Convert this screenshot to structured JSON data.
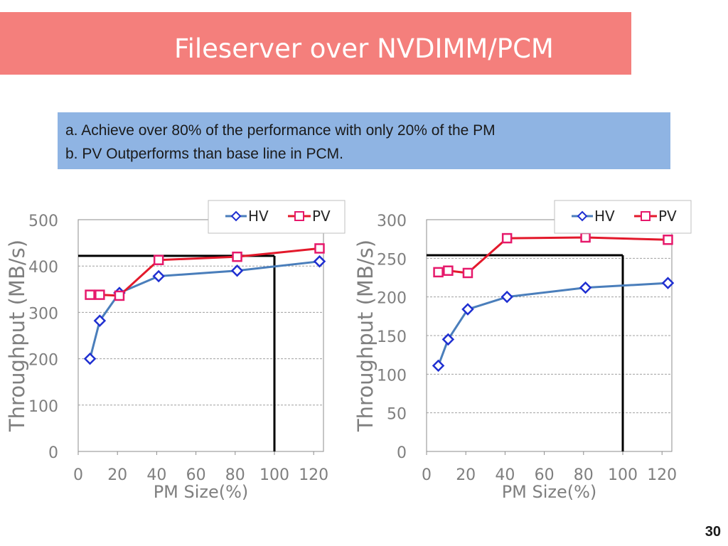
{
  "slide": {
    "title": "Fileserver over NVDIMM/PCM",
    "notes": [
      "a. Achieve over 80% of the performance with only 20% of the PM",
      "b. PV Outperforms than base line in PCM."
    ],
    "page_number": "30"
  },
  "colors": {
    "title_bg": "#f47f7c",
    "note_bg": "#8fb4e3",
    "hv": "#4a7ebb",
    "hv_marker": "#1f2fd1",
    "pv": "#e3192b",
    "pv_marker": "#e6196b",
    "baseline": "#000000"
  },
  "chart_data": [
    {
      "type": "line",
      "xlabel": "PM Size(%)",
      "ylabel": "Throughput (MB/s)",
      "xlim": [
        0,
        125
      ],
      "ylim": [
        0,
        500
      ],
      "xticks": [
        0,
        20,
        40,
        60,
        80,
        100,
        120
      ],
      "yticks": [
        0,
        100,
        200,
        300,
        400,
        500
      ],
      "grid": true,
      "legend": "top-right",
      "series": [
        {
          "name": "HV",
          "x": [
            6,
            11,
            21,
            41,
            81,
            123
          ],
          "y": [
            200,
            282,
            342,
            378,
            390,
            410
          ]
        },
        {
          "name": "PV",
          "x": [
            6,
            11,
            21,
            41,
            81,
            123
          ],
          "y": [
            338,
            338,
            336,
            413,
            420,
            438
          ]
        }
      ],
      "reference_lines": {
        "y": 422,
        "x": 100
      }
    },
    {
      "type": "line",
      "xlabel": "PM Size(%)",
      "ylabel": "Throughput (MB/s)",
      "xlim": [
        0,
        125
      ],
      "ylim": [
        0,
        300
      ],
      "xticks": [
        0,
        20,
        40,
        60,
        80,
        100,
        120
      ],
      "yticks": [
        0,
        50,
        100,
        150,
        200,
        250,
        300
      ],
      "grid": true,
      "legend": "top-right",
      "series": [
        {
          "name": "HV",
          "x": [
            6,
            11,
            21,
            41,
            81,
            123
          ],
          "y": [
            111,
            145,
            184,
            200,
            212,
            218
          ]
        },
        {
          "name": "PV",
          "x": [
            6,
            11,
            21,
            41,
            81,
            123
          ],
          "y": [
            232,
            234,
            231,
            276,
            277,
            274
          ]
        }
      ],
      "reference_lines": {
        "y": 254,
        "x": 100
      }
    }
  ]
}
